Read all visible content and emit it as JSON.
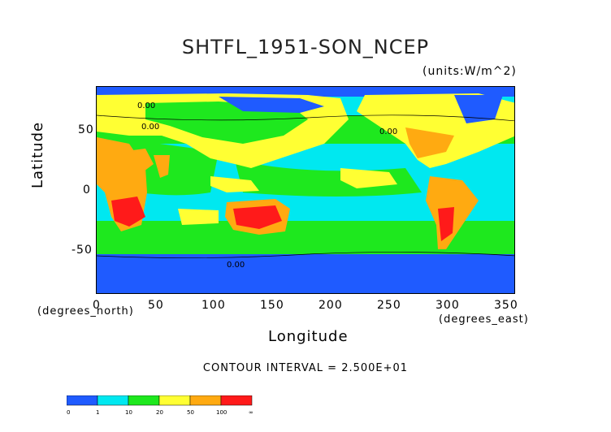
{
  "map": {
    "title": "SHTFL_1951-SON_NCEP",
    "units": "(units:W/m^2)",
    "y_axis": {
      "label": "Latitude",
      "unit_label": "(degrees_north)",
      "ticks": [
        "50",
        "0",
        "-50"
      ]
    },
    "x_axis": {
      "label": "Longitude",
      "unit_label": "(degrees_east)",
      "ticks": [
        "0",
        "50",
        "100",
        "150",
        "200",
        "250",
        "300",
        "350"
      ]
    },
    "contour_interval": "CONTOUR INTERVAL = 2.500E+01",
    "contour_labels": [
      "0.00",
      "0.00",
      "0.00",
      "0.00"
    ]
  },
  "colorbar": {
    "labels": [
      "0",
      "1",
      "10",
      "20",
      "50",
      "100",
      "∞"
    ],
    "colors": [
      "#1f5bff",
      "#1f9fff",
      "#00e8f0",
      "#1ee81e",
      "#ffff33",
      "#ffaa11",
      "#ff1a1a"
    ]
  },
  "colors": {
    "ocean_low": "#1f5bff",
    "ocean_mid": "#00e8f0",
    "ocean_high": "#1ee81e",
    "land_warm": "#ffff33",
    "land_hot": "#ffaa11",
    "land_hottest": "#ff1a1a"
  }
}
